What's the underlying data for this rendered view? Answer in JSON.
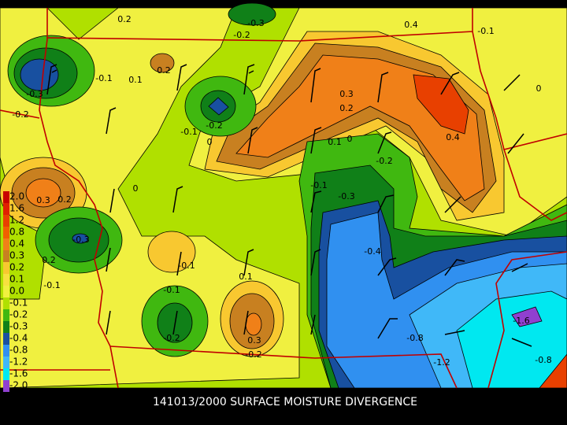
{
  "caption": "141013/2000 SURFACE MOISTURE DIVERGENCE",
  "legend": [
    {
      "label": "2.0",
      "color": "#c80000"
    },
    {
      "label": "1.6",
      "color": "#e02000"
    },
    {
      "label": "1.2",
      "color": "#e84000"
    },
    {
      "label": "0.8",
      "color": "#f06000"
    },
    {
      "label": "0.4",
      "color": "#f08018"
    },
    {
      "label": "0.3",
      "color": "#c88020"
    },
    {
      "label": "0.2",
      "color": "#f8c830"
    },
    {
      "label": "0.1",
      "color": "#f8e040"
    },
    {
      "label": "0.0",
      "color": "#f0f040"
    },
    {
      "label": "-0.1",
      "color": "#b0e000"
    },
    {
      "label": "-0.2",
      "color": "#40b810"
    },
    {
      "label": "-0.3",
      "color": "#108018"
    },
    {
      "label": "-0.4",
      "color": "#1850a0"
    },
    {
      "label": "-0.8",
      "color": "#3090f0"
    },
    {
      "label": "-1.2",
      "color": "#40b8f8"
    },
    {
      "label": "-1.6",
      "color": "#00e8f0"
    },
    {
      "label": "-2.0",
      "color": "#9040d0"
    }
  ],
  "contour_labels": [
    "0.2",
    "-0.3",
    "-0.2",
    "0.4",
    "-0.1",
    "0.2",
    "-0.1",
    "0.1",
    "-0.3",
    "0.3",
    "0.2",
    "0",
    "-0.2",
    "-0.2",
    "-0.1",
    "0",
    "0.1",
    "0",
    "0.4",
    "-0.2",
    "-0.1",
    "0",
    "-0.3",
    "0.3",
    "0.2",
    "-0.3",
    "0.2",
    "-0.4",
    "-0.1",
    "0.1",
    "-0.1",
    "-0.1",
    "-1.6",
    "0.3",
    "-0.2",
    "-0.8",
    "-0.2",
    "-1.2",
    "-0.8"
  ]
}
